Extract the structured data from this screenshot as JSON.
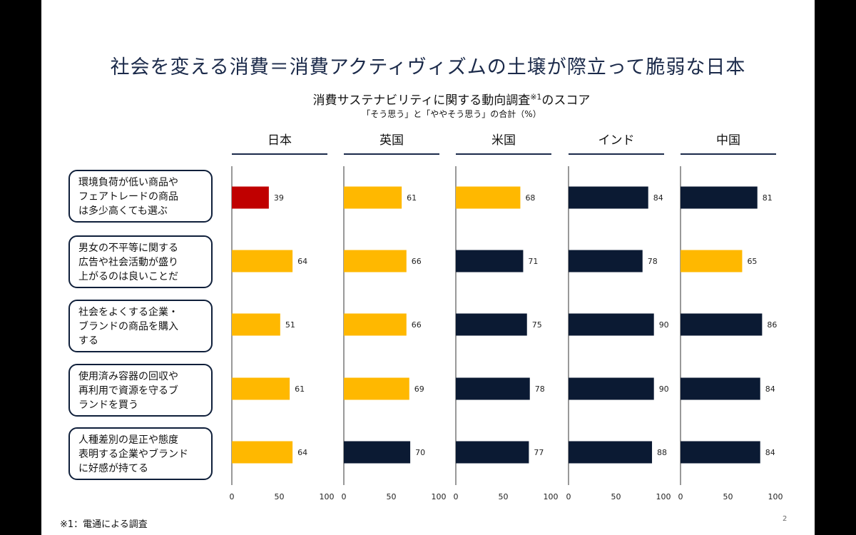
{
  "title": "社会を変える消費＝消費アクティヴィズムの土壌が際立って脆弱な日本",
  "chart_title_main": "消費サステナビリティに関する動向調査",
  "chart_title_sup": "※1",
  "chart_title_tail": "のスコア",
  "chart_note": "「そう思う」と「ややそう思う」の合計（%）",
  "footnote": "※1：電通による調査",
  "page_number": "2",
  "colors": {
    "japan_highlight": "#c00000",
    "gold": "#ffb800",
    "navy": "#0b1a33",
    "axis": "#333333",
    "box_border": "#0f1f3a"
  },
  "chart_data": {
    "type": "bar",
    "orientation": "horizontal",
    "xlim": [
      0,
      100
    ],
    "xticks": [
      "0",
      "50",
      "100"
    ],
    "countries": [
      "日本",
      "英国",
      "米国",
      "インド",
      "中国"
    ],
    "categories": [
      [
        "環境負荷が低い商品や",
        "フェアトレードの商品",
        "は多少高くても選ぶ"
      ],
      [
        "男女の不平等に関する",
        "広告や社会活動が盛り",
        "上がるのは良いことだ"
      ],
      [
        "社会をよくする企業・",
        "ブランドの商品を購入",
        "する"
      ],
      [
        "使用済み容器の回収や",
        "再利用で資源を守るブ",
        "ランドを買う"
      ],
      [
        "人種差別の是正や態度",
        "表明する企業やブランド",
        "に好感が持てる"
      ]
    ],
    "series": [
      {
        "name": "日本",
        "values": [
          39,
          64,
          51,
          61,
          64
        ],
        "colors": [
          "red",
          "gold",
          "gold",
          "gold",
          "gold"
        ]
      },
      {
        "name": "英国",
        "values": [
          61,
          66,
          66,
          69,
          70
        ],
        "colors": [
          "gold",
          "gold",
          "gold",
          "gold",
          "navy"
        ]
      },
      {
        "name": "米国",
        "values": [
          68,
          71,
          75,
          78,
          77
        ],
        "colors": [
          "gold",
          "navy",
          "navy",
          "navy",
          "navy"
        ]
      },
      {
        "name": "インド",
        "values": [
          84,
          78,
          90,
          90,
          88
        ],
        "colors": [
          "navy",
          "navy",
          "navy",
          "navy",
          "navy"
        ]
      },
      {
        "name": "中国",
        "values": [
          81,
          65,
          86,
          84,
          84
        ],
        "colors": [
          "navy",
          "gold",
          "navy",
          "navy",
          "navy"
        ]
      }
    ]
  }
}
